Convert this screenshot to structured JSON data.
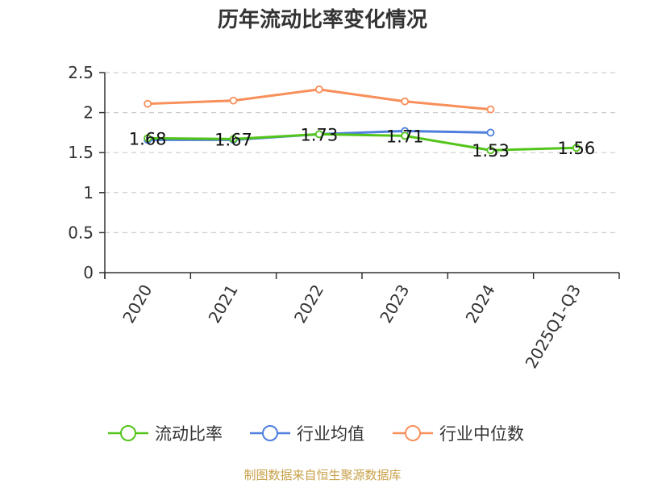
{
  "chart_data": {
    "type": "line",
    "title": "历年流动比率变化情况",
    "categories": [
      "2020",
      "2021",
      "2022",
      "2023",
      "2024",
      "2025Q1-Q3"
    ],
    "ylim": [
      0,
      2.5
    ],
    "yticks": [
      "0",
      "0.5",
      "1",
      "1.5",
      "2",
      "2.5"
    ],
    "grid": true,
    "legend_position": "bottom",
    "series": [
      {
        "name": "流动比率",
        "color": "#52c41a",
        "values": [
          1.68,
          1.67,
          1.73,
          1.71,
          1.53,
          1.56
        ],
        "labels": [
          "1.68",
          "1.67",
          "1.73",
          "1.71",
          "1.53",
          "1.56"
        ]
      },
      {
        "name": "行业均值",
        "color": "#4e7fde",
        "values": [
          1.66,
          1.66,
          1.73,
          1.77,
          1.75,
          null
        ]
      },
      {
        "name": "行业中位数",
        "color": "#f88f5a",
        "values": [
          2.11,
          2.15,
          2.29,
          2.14,
          2.04,
          null
        ]
      }
    ]
  },
  "source": "制图数据来自恒生聚源数据库"
}
